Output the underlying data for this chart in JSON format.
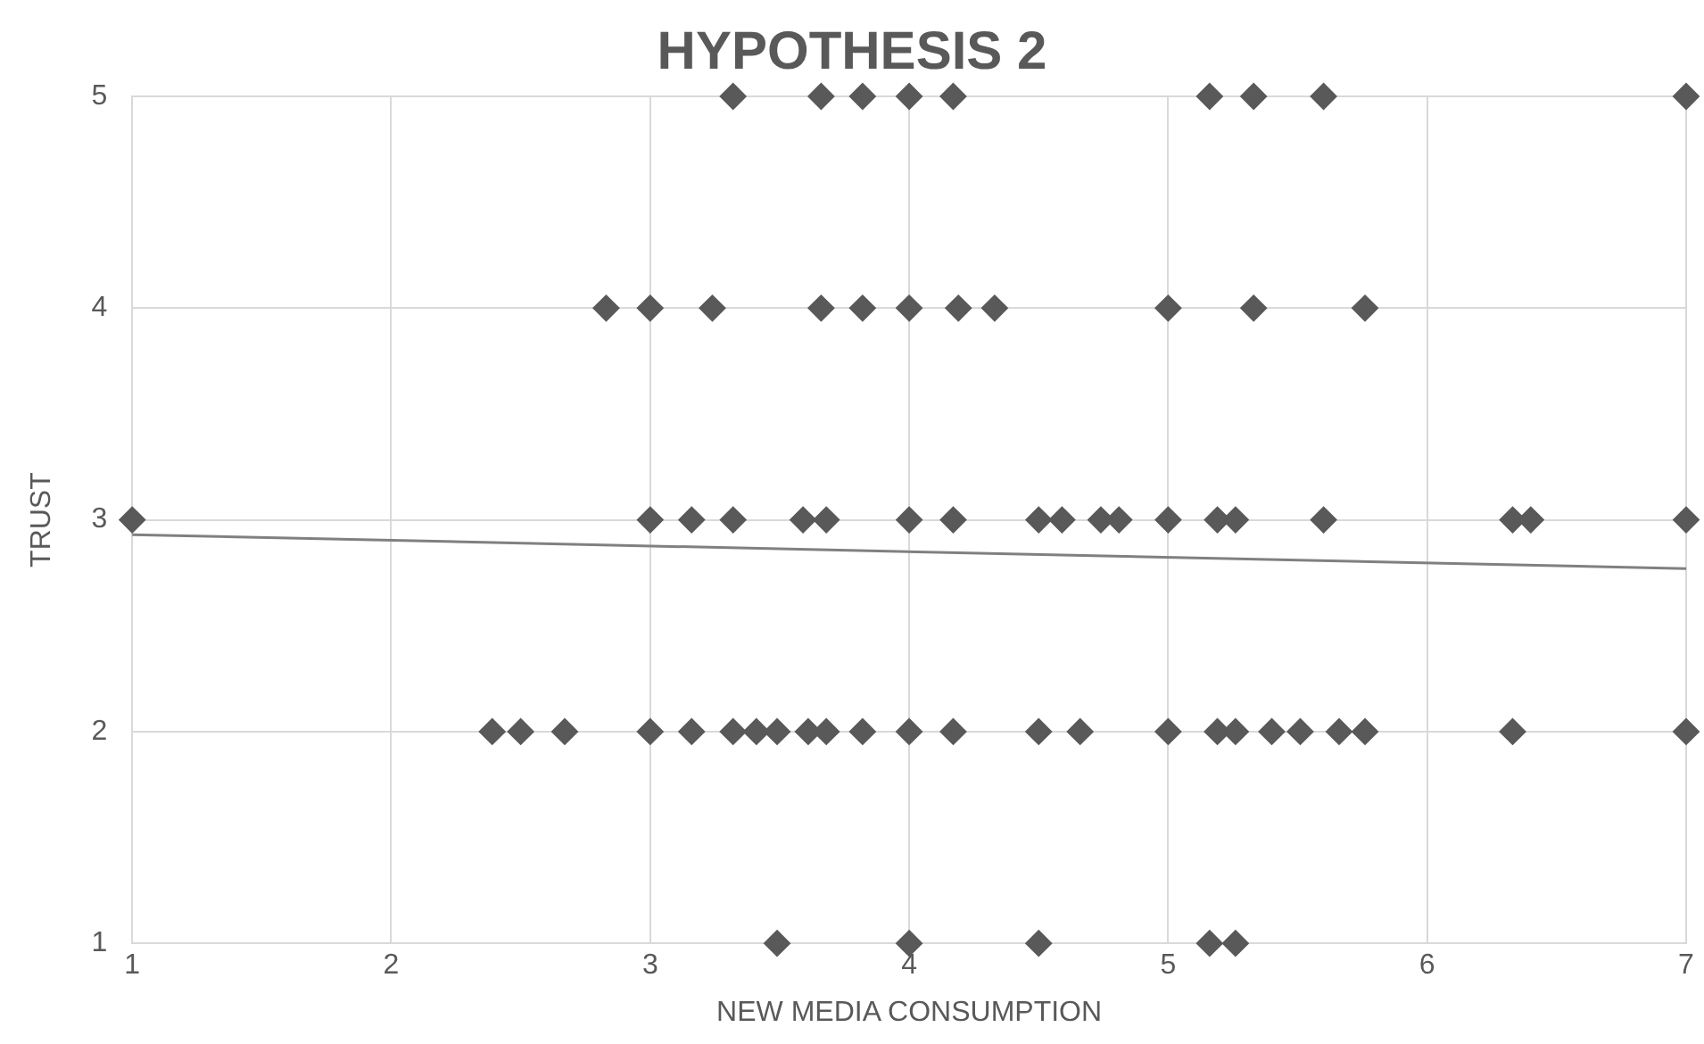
{
  "chart_data": {
    "type": "scatter",
    "title": "HYPOTHESIS 2",
    "xlabel": "NEW MEDIA CONSUMPTION",
    "ylabel": "TRUST",
    "xlim": [
      1,
      7
    ],
    "xticks": [
      1,
      2,
      3,
      4,
      5,
      6,
      7
    ],
    "ylim": [
      1,
      5
    ],
    "yticks": [
      1,
      2,
      3,
      4,
      5
    ],
    "grid": true,
    "legend": false,
    "marker": "diamond",
    "series": [
      {
        "color": "#595959",
        "x": [
          3.32,
          3.66,
          3.82,
          4.0,
          4.17,
          5.16,
          5.33,
          5.6,
          7.0,
          2.83,
          3.0,
          3.24,
          3.66,
          3.82,
          4.0,
          4.19,
          4.33,
          5.0,
          5.33,
          5.76,
          1.0,
          3.0,
          3.16,
          3.32,
          3.59,
          3.68,
          4.0,
          4.17,
          4.5,
          4.59,
          4.74,
          4.81,
          5.0,
          5.19,
          5.26,
          5.6,
          6.33,
          6.4,
          7.0,
          2.39,
          2.5,
          2.67,
          3.0,
          3.16,
          3.32,
          3.41,
          3.49,
          3.61,
          3.68,
          3.82,
          4.0,
          4.17,
          4.5,
          4.66,
          5.0,
          5.19,
          5.26,
          5.4,
          5.51,
          5.66,
          5.76,
          6.33,
          7.0,
          3.49,
          4.0,
          4.5,
          5.16,
          5.26
        ],
        "values": [
          5,
          5,
          5,
          5,
          5,
          5,
          5,
          5,
          5,
          4,
          4,
          4,
          4,
          4,
          4,
          4,
          4,
          4,
          4,
          4,
          3,
          3,
          3,
          3,
          3,
          3,
          3,
          3,
          3,
          3,
          3,
          3,
          3,
          3,
          3,
          3,
          3,
          3,
          3,
          2,
          2,
          2,
          2,
          2,
          2,
          2,
          2,
          2,
          2,
          2,
          2,
          2,
          2,
          2,
          2,
          2,
          2,
          2,
          2,
          2,
          2,
          2,
          2,
          1,
          1,
          1,
          1,
          1
        ]
      },
      {
        "type": "line",
        "color": "#808080",
        "marker": "none",
        "x": [
          1,
          7
        ],
        "values": [
          2.93,
          2.77
        ]
      }
    ]
  }
}
